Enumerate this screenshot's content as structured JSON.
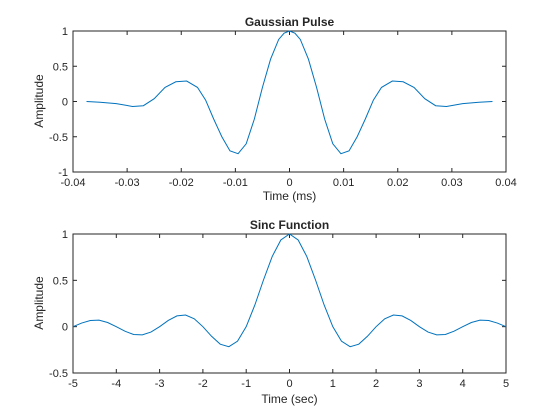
{
  "chart_data": [
    {
      "type": "line",
      "title": "Gaussian Pulse",
      "xlabel": "Time (ms)",
      "ylabel": "Amplitude",
      "xlim": [
        -0.04,
        0.04
      ],
      "ylim": [
        -1,
        1
      ],
      "xticks": [
        -0.04,
        -0.03,
        -0.02,
        -0.01,
        0,
        0.01,
        0.02,
        0.03,
        0.04
      ],
      "xtick_labels": [
        "-0.04",
        "-0.03",
        "-0.02",
        "-0.01",
        "0",
        "0.01",
        "0.02",
        "0.03",
        "0.04"
      ],
      "yticks": [
        -1,
        -0.5,
        0,
        0.5,
        1
      ],
      "ytick_labels": [
        "-1",
        "-0.5",
        "0",
        "0.5",
        "1"
      ],
      "grid": false,
      "legend": "none",
      "color": "#0072bd",
      "series": [
        {
          "x": [
            -0.0375,
            -0.035,
            -0.032,
            -0.029,
            -0.027,
            -0.025,
            -0.023,
            -0.021,
            -0.019,
            -0.017,
            -0.0155,
            -0.014,
            -0.0125,
            -0.011,
            -0.0095,
            -0.008,
            -0.0065,
            -0.005,
            -0.0035,
            -0.002,
            -0.001,
            0,
            0.001,
            0.002,
            0.0035,
            0.005,
            0.0065,
            0.008,
            0.0095,
            0.011,
            0.0125,
            0.014,
            0.0155,
            0.017,
            0.019,
            0.021,
            0.023,
            0.025,
            0.027,
            0.029,
            0.032,
            0.035,
            0.0375
          ],
          "y": [
            0,
            -0.01,
            -0.03,
            -0.07,
            -0.06,
            0.04,
            0.2,
            0.28,
            0.29,
            0.2,
            0.02,
            -0.25,
            -0.5,
            -0.7,
            -0.74,
            -0.6,
            -0.25,
            0.2,
            0.6,
            0.88,
            0.97,
            1,
            0.97,
            0.88,
            0.6,
            0.2,
            -0.25,
            -0.6,
            -0.74,
            -0.7,
            -0.5,
            -0.25,
            0.02,
            0.2,
            0.29,
            0.28,
            0.2,
            0.04,
            -0.06,
            -0.07,
            -0.03,
            -0.01,
            0
          ]
        }
      ]
    },
    {
      "type": "line",
      "title": "Sinc Function",
      "xlabel": "Time (sec)",
      "ylabel": "Amplitude",
      "xlim": [
        -5,
        5
      ],
      "ylim": [
        -0.5,
        1
      ],
      "xticks": [
        -5,
        -4,
        -3,
        -2,
        -1,
        0,
        1,
        2,
        3,
        4,
        5
      ],
      "xtick_labels": [
        "-5",
        "-4",
        "-3",
        "-2",
        "-1",
        "0",
        "1",
        "2",
        "3",
        "4",
        "5"
      ],
      "yticks": [
        -0.5,
        0,
        0.5,
        1
      ],
      "ytick_labels": [
        "-0.5",
        "0",
        "0.5",
        "1"
      ],
      "grid": false,
      "legend": "none",
      "color": "#0072bd",
      "series": [
        {
          "x": [
            -5,
            -4.8,
            -4.6,
            -4.4,
            -4.2,
            -4,
            -3.8,
            -3.6,
            -3.4,
            -3.2,
            -3,
            -2.8,
            -2.6,
            -2.4,
            -2.2,
            -2,
            -1.8,
            -1.6,
            -1.4,
            -1.2,
            -1,
            -0.8,
            -0.6,
            -0.4,
            -0.2,
            0,
            0.2,
            0.4,
            0.6,
            0.8,
            1,
            1.2,
            1.4,
            1.6,
            1.8,
            2,
            2.2,
            2.4,
            2.6,
            2.8,
            3,
            3.2,
            3.4,
            3.6,
            3.8,
            4,
            4.2,
            4.4,
            4.6,
            4.8,
            5
          ],
          "y": [
            0,
            0.039,
            0.066,
            0.07,
            0.045,
            0,
            -0.049,
            -0.084,
            -0.089,
            -0.058,
            0,
            0.067,
            0.116,
            0.126,
            0.085,
            0,
            -0.104,
            -0.189,
            -0.216,
            -0.156,
            0,
            0.234,
            0.505,
            0.757,
            0.935,
            1,
            0.935,
            0.757,
            0.505,
            0.234,
            0,
            -0.156,
            -0.216,
            -0.189,
            -0.104,
            0,
            0.085,
            0.126,
            0.116,
            0.067,
            0,
            -0.058,
            -0.089,
            -0.084,
            -0.049,
            0,
            0.045,
            0.07,
            0.066,
            0.039,
            0
          ]
        }
      ]
    }
  ]
}
